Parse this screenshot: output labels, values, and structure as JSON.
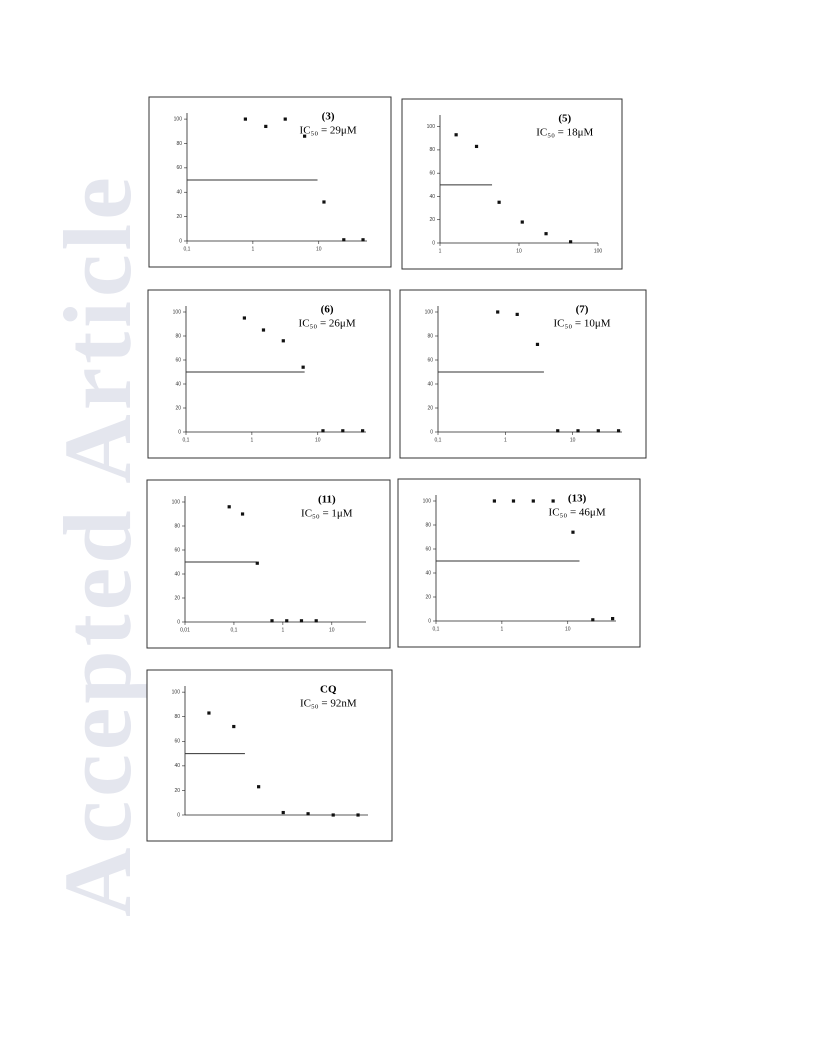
{
  "watermark": "Accepted Article",
  "chart_data": [
    {
      "type": "scatter",
      "title": "(3)",
      "subtitle": "IC₅₀ = 29μM",
      "x": [
        0.77,
        1.57,
        3.1,
        6.1,
        12,
        24,
        47
      ],
      "values": [
        100,
        94,
        100,
        86,
        32,
        1,
        1
      ],
      "xlim": [
        0.1,
        54
      ],
      "log_x": true,
      "ylim": [
        0,
        105
      ],
      "xticks": [
        {
          "value": 0.1,
          "label": "0,1"
        },
        1,
        10
      ],
      "yticks": [
        0,
        20,
        40,
        60,
        80,
        100
      ],
      "threshold": 50,
      "color": "#111111"
    },
    {
      "type": "scatter",
      "title": "(5)",
      "subtitle": "IC₅₀ = 18μM",
      "x": [
        1.6,
        2.9,
        5.6,
        11,
        22,
        45
      ],
      "values": [
        93,
        83,
        35,
        18,
        8,
        1
      ],
      "xlim": [
        1,
        100
      ],
      "log_x": true,
      "ylim": [
        0,
        110
      ],
      "xticks": [
        1,
        10,
        100
      ],
      "yticks": [
        0,
        20,
        40,
        60,
        80,
        100
      ],
      "threshold": 50,
      "color": "#111111"
    },
    {
      "type": "scatter",
      "title": "(6)",
      "subtitle": "IC₅₀ = 26μM",
      "x": [
        0.77,
        1.5,
        3,
        6,
        12,
        24,
        48
      ],
      "values": [
        95,
        85,
        76,
        54,
        1,
        1,
        1
      ],
      "xlim": [
        0.1,
        54
      ],
      "log_x": true,
      "ylim": [
        0,
        105
      ],
      "xticks": [
        {
          "value": 0.1,
          "label": "0,1"
        },
        1,
        10
      ],
      "yticks": [
        0,
        20,
        40,
        60,
        80,
        100
      ],
      "threshold": 50,
      "color": "#111111"
    },
    {
      "type": "scatter",
      "title": "(7)",
      "subtitle": "IC₅₀ = 10μM",
      "x": [
        0.77,
        1.5,
        3,
        6,
        12,
        24,
        48
      ],
      "values": [
        100,
        98,
        73,
        1,
        1,
        1,
        1
      ],
      "xlim": [
        0.1,
        54
      ],
      "log_x": true,
      "ylim": [
        0,
        105
      ],
      "xticks": [
        {
          "value": 0.1,
          "label": "0,1"
        },
        1,
        10
      ],
      "yticks": [
        0,
        20,
        40,
        60,
        80,
        100
      ],
      "threshold": 50,
      "color": "#111111"
    },
    {
      "type": "scatter",
      "title": "(11)",
      "subtitle": "IC₅₀ = 1μM",
      "x": [
        0.08,
        0.15,
        0.3,
        0.6,
        1.2,
        2.4,
        4.8
      ],
      "values": [
        96,
        90,
        49,
        1,
        1,
        1,
        1
      ],
      "xlim": [
        0.01,
        50
      ],
      "log_x": true,
      "ylim": [
        0,
        105
      ],
      "xticks": [
        {
          "value": 0.01,
          "label": "0,01"
        },
        {
          "value": 0.1,
          "label": "0,1"
        },
        1,
        10
      ],
      "yticks": [
        0,
        20,
        40,
        60,
        80,
        100
      ],
      "threshold": 50,
      "color": "#111111"
    },
    {
      "type": "scatter",
      "title": "(13)",
      "subtitle": "IC₅₀ = 46μM",
      "x": [
        0.77,
        1.5,
        3,
        6,
        12,
        24,
        48
      ],
      "values": [
        100,
        100,
        100,
        100,
        74,
        1,
        2
      ],
      "xlim": [
        0.1,
        54
      ],
      "log_x": true,
      "ylim": [
        0,
        105
      ],
      "xticks": [
        {
          "value": 0.1,
          "label": "0,1"
        },
        1,
        10
      ],
      "yticks": [
        0,
        20,
        40,
        60,
        80,
        100
      ],
      "threshold": 50,
      "color": "#111111"
    },
    {
      "type": "scatter",
      "title": "CQ",
      "subtitle": "IC₅₀ = 92nM",
      "x": [
        3.9,
        7.8,
        15.6,
        31,
        62,
        125,
        250
      ],
      "values": [
        83,
        72,
        23,
        2,
        1,
        0,
        0
      ],
      "xlim": [
        2,
        330
      ],
      "log_x": true,
      "ylim": [
        0,
        105
      ],
      "yticks": [
        0,
        20,
        40,
        60,
        80,
        100
      ],
      "threshold": 50,
      "color": "#111111"
    }
  ]
}
